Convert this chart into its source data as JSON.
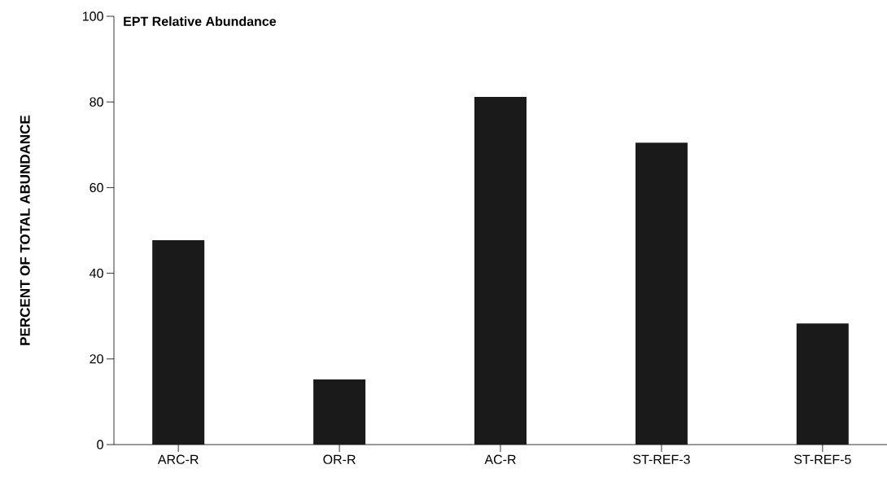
{
  "chart_data": {
    "type": "bar",
    "title": "EPT Relative Abundance",
    "ylabel": "PERCENT OF TOTAL ABUNDANCE",
    "categories": [
      "ARC-R",
      "OR-R",
      "AC-R",
      "ST-REF-3",
      "ST-REF-5"
    ],
    "values": [
      47.7,
      15.2,
      81.2,
      70.5,
      28.3
    ],
    "color": "#1a1a1a",
    "ylim": [
      0,
      100
    ],
    "yticks": [
      0,
      20,
      40,
      60,
      80,
      100
    ]
  }
}
